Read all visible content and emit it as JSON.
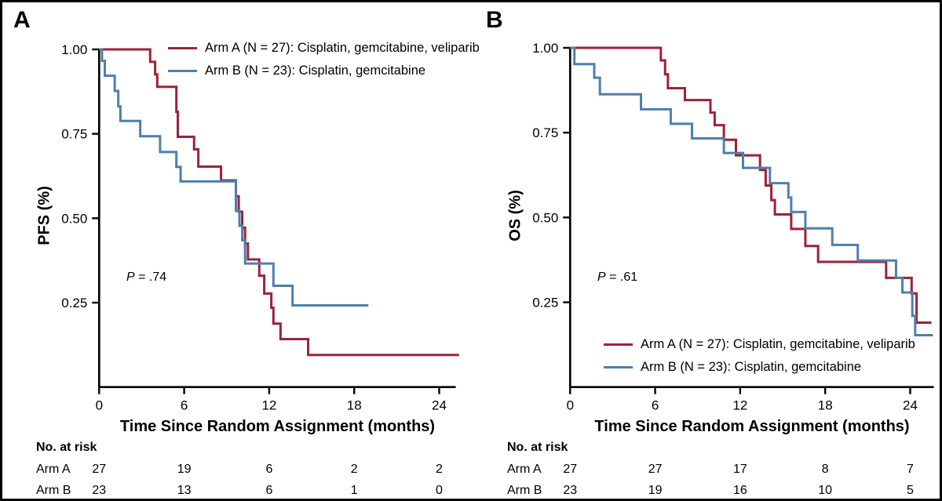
{
  "figure_border_color": "#000000",
  "background_color": "#ffffff",
  "axis_color": "#000000",
  "chart_data": [
    {
      "type": "line",
      "subtype": "kaplan-meier-step",
      "panel_letter": "A",
      "xlabel": "Time Since Random Assignment (months)",
      "ylabel": "PFS (%)",
      "xlim": [
        0,
        25.3
      ],
      "ylim": [
        0,
        1.0
      ],
      "xticks": [
        0,
        6,
        12,
        18,
        24
      ],
      "ytick_labels": [
        "1.00",
        "0.75",
        "0.50",
        "0.25"
      ],
      "ytick_values": [
        1.0,
        0.75,
        0.5,
        0.25
      ],
      "grid": false,
      "legend_position": "top-inside",
      "p_var": "P",
      "p_rest": " = .74",
      "series": [
        {
          "name": "Arm A (N = 27): Cisplatin, gemcitabine, veliparib",
          "color": "#9F2136",
          "end": 25.4,
          "steps": [
            [
              0,
              1.0
            ],
            [
              3.6,
              0.963
            ],
            [
              3.95,
              0.926
            ],
            [
              4.1,
              0.889
            ],
            [
              5.45,
              0.815
            ],
            [
              5.55,
              0.741
            ],
            [
              6.7,
              0.704
            ],
            [
              7.0,
              0.653
            ],
            [
              8.6,
              0.612
            ],
            [
              9.65,
              0.565
            ],
            [
              9.85,
              0.519
            ],
            [
              10.1,
              0.472
            ],
            [
              10.3,
              0.425
            ],
            [
              10.5,
              0.378
            ],
            [
              11.3,
              0.33
            ],
            [
              11.65,
              0.277
            ],
            [
              12.15,
              0.235
            ],
            [
              12.3,
              0.188
            ],
            [
              12.8,
              0.142
            ],
            [
              14.75,
              0.095
            ]
          ]
        },
        {
          "name": "Arm B (N = 23): Cisplatin, gemcitabine",
          "color": "#4E7FAE",
          "end": 19.0,
          "steps": [
            [
              0,
              1.0
            ],
            [
              0.2,
              0.966
            ],
            [
              0.4,
              0.922
            ],
            [
              1.1,
              0.877
            ],
            [
              1.35,
              0.831
            ],
            [
              1.5,
              0.788
            ],
            [
              2.9,
              0.743
            ],
            [
              4.3,
              0.696
            ],
            [
              5.45,
              0.652
            ],
            [
              5.75,
              0.609
            ],
            [
              9.65,
              0.522
            ],
            [
              9.9,
              0.478
            ],
            [
              10.1,
              0.435
            ],
            [
              10.3,
              0.366
            ],
            [
              12.3,
              0.3
            ],
            [
              13.65,
              0.242
            ]
          ]
        }
      ],
      "no_at_risk": {
        "header": "No. at risk",
        "times": [
          0,
          6,
          12,
          18,
          24
        ],
        "rows": [
          {
            "label": "Arm A",
            "values": [
              "27",
              "19",
              "6",
              "2",
              "2"
            ]
          },
          {
            "label": "Arm B",
            "values": [
              "23",
              "13",
              "6",
              "1",
              "0"
            ]
          }
        ]
      }
    },
    {
      "type": "line",
      "subtype": "kaplan-meier-step",
      "panel_letter": "B",
      "xlabel": "Time Since Random Assignment (months)",
      "ylabel": "OS (%)",
      "xlim": [
        0,
        25.7
      ],
      "ylim": [
        0,
        1.0
      ],
      "xticks": [
        0,
        6,
        12,
        18,
        24
      ],
      "ytick_labels": [
        "1.00",
        "0.75",
        "0.50",
        "0.25"
      ],
      "ytick_values": [
        1.0,
        0.75,
        0.5,
        0.25
      ],
      "grid": false,
      "legend_position": "bottom-inside",
      "p_var": "P",
      "p_rest": " = .61",
      "series": [
        {
          "name": "Arm A (N = 27): Cisplatin, gemcitabine, veliparib",
          "color": "#9F2136",
          "end": 25.5,
          "steps": [
            [
              0,
              1.0
            ],
            [
              6.4,
              0.963
            ],
            [
              6.7,
              0.922
            ],
            [
              6.9,
              0.881
            ],
            [
              8.1,
              0.846
            ],
            [
              9.9,
              0.809
            ],
            [
              10.2,
              0.772
            ],
            [
              10.85,
              0.729
            ],
            [
              11.7,
              0.683
            ],
            [
              13.4,
              0.64
            ],
            [
              13.8,
              0.594
            ],
            [
              14.2,
              0.551
            ],
            [
              14.45,
              0.509
            ],
            [
              15.6,
              0.466
            ],
            [
              16.6,
              0.416
            ],
            [
              17.5,
              0.369
            ],
            [
              22.3,
              0.322
            ],
            [
              24.1,
              0.276
            ],
            [
              24.45,
              0.19
            ]
          ]
        },
        {
          "name": "Arm B (N = 23): Cisplatin, gemcitabine",
          "color": "#4E7FAE",
          "end": 25.6,
          "steps": [
            [
              0,
              1.0
            ],
            [
              0.3,
              0.952
            ],
            [
              1.7,
              0.912
            ],
            [
              2.1,
              0.863
            ],
            [
              5.0,
              0.819
            ],
            [
              7.1,
              0.776
            ],
            [
              8.6,
              0.733
            ],
            [
              10.85,
              0.69
            ],
            [
              12.2,
              0.646
            ],
            [
              14.1,
              0.601
            ],
            [
              15.4,
              0.559
            ],
            [
              15.6,
              0.516
            ],
            [
              16.6,
              0.468
            ],
            [
              18.5,
              0.419
            ],
            [
              20.3,
              0.373
            ],
            [
              23.0,
              0.322
            ],
            [
              23.45,
              0.279
            ],
            [
              24.15,
              0.21
            ],
            [
              24.35,
              0.153
            ]
          ]
        }
      ],
      "no_at_risk": {
        "header": "No. at risk",
        "times": [
          0,
          6,
          12,
          18,
          24
        ],
        "rows": [
          {
            "label": "Arm A",
            "values": [
              "27",
              "27",
              "17",
              "8",
              "7"
            ]
          },
          {
            "label": "Arm B",
            "values": [
              "23",
              "19",
              "16",
              "10",
              "5"
            ]
          }
        ]
      }
    }
  ]
}
